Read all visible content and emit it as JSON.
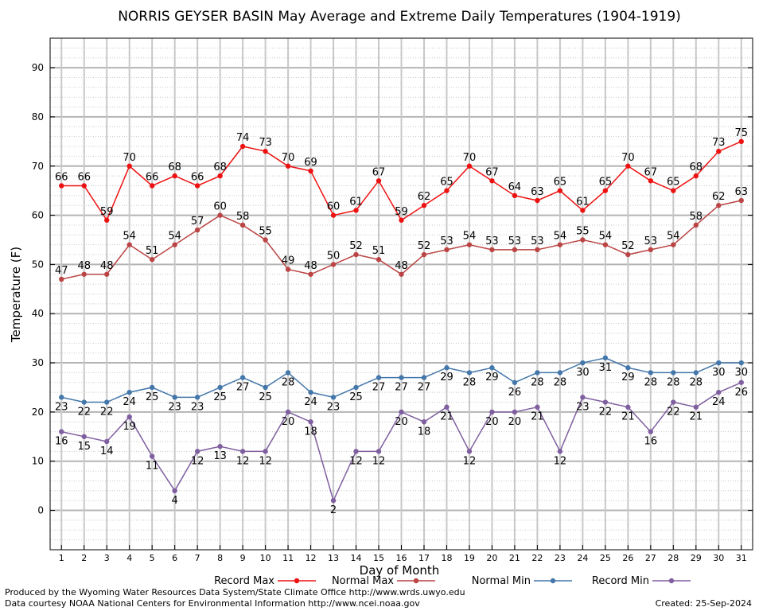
{
  "chart_data": {
    "type": "line",
    "title": "NORRIS GEYSER BASIN May Average and Extreme Daily Temperatures (1904-1919)",
    "xlabel": "Day of Month",
    "ylabel": "Temperature (F)",
    "xlim": [
      0.5,
      31.5
    ],
    "ylim": [
      -8,
      96
    ],
    "y_ticks": [
      0,
      10,
      20,
      30,
      40,
      50,
      60,
      70,
      80,
      90
    ],
    "x": [
      1,
      2,
      3,
      4,
      5,
      6,
      7,
      8,
      9,
      10,
      11,
      12,
      13,
      14,
      15,
      16,
      17,
      18,
      19,
      20,
      21,
      22,
      23,
      24,
      25,
      26,
      27,
      28,
      29,
      30,
      31
    ],
    "grid": true,
    "legend_position": "bottom",
    "series": [
      {
        "name": "Record Max",
        "color": "#ee1111",
        "label_position": "above",
        "values": [
          66,
          66,
          59,
          70,
          66,
          68,
          66,
          68,
          74,
          73,
          70,
          69,
          60,
          61,
          67,
          59,
          62,
          65,
          70,
          67,
          64,
          63,
          65,
          61,
          65,
          70,
          67,
          65,
          68,
          73,
          75
        ]
      },
      {
        "name": "Normal Max",
        "color": "#bb4444",
        "label_position": "above",
        "values": [
          47,
          48,
          48,
          54,
          51,
          54,
          57,
          60,
          58,
          55,
          49,
          48,
          50,
          52,
          51,
          48,
          52,
          53,
          54,
          53,
          53,
          53,
          54,
          55,
          54,
          52,
          53,
          54,
          58,
          62,
          63
        ]
      },
      {
        "name": "Normal Min",
        "color": "#4477aa",
        "label_position": "below",
        "values": [
          23,
          22,
          22,
          24,
          25,
          23,
          23,
          25,
          27,
          25,
          28,
          24,
          23,
          25,
          27,
          27,
          27,
          29,
          28,
          29,
          26,
          28,
          28,
          30,
          31,
          29,
          28,
          28,
          28,
          30,
          30
        ]
      },
      {
        "name": "Record Min",
        "color": "#7f5f9f",
        "label_position": "below",
        "values": [
          16,
          15,
          14,
          19,
          11,
          4,
          12,
          13,
          12,
          12,
          20,
          18,
          2,
          12,
          12,
          20,
          18,
          21,
          12,
          20,
          20,
          21,
          12,
          23,
          22,
          21,
          16,
          22,
          21,
          24,
          26
        ]
      }
    ]
  },
  "footer": {
    "produced_by": "Produced by the Wyoming Water Resources Data System/State Climate Office http://www.wrds.uwyo.edu",
    "courtesy": "Data courtesy NOAA National Centers for Environmental Information http://www.ncei.noaa.gov",
    "created": "Created:  25-Sep-2024"
  }
}
